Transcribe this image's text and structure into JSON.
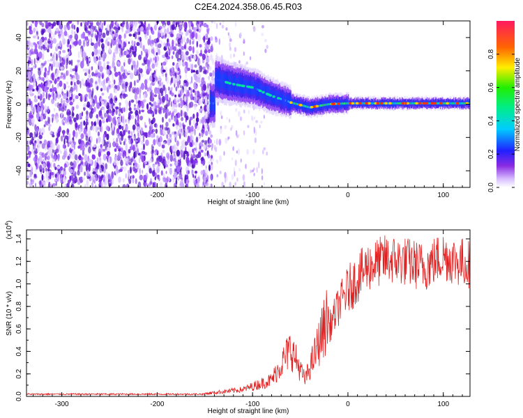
{
  "title": "C2E4.2024.358.06.45.R03",
  "colors": {
    "snr_line": "#e02020",
    "background": "#ffffff"
  },
  "chart_data": [
    {
      "type": "heatmap",
      "name": "spectrogram",
      "xlabel": "Height of straight line (km)",
      "ylabel": "Frequency (Hz)",
      "xlim": [
        -337,
        128
      ],
      "ylim": [
        -50,
        50
      ],
      "xticks": [
        -300,
        -200,
        -100,
        0,
        100
      ],
      "yticks": [
        -40,
        -20,
        0,
        20,
        40
      ],
      "colorbar": {
        "label": "Normalized spectral amplitude",
        "range": [
          0,
          1
        ],
        "ticks": [
          "0.0",
          "0.2",
          "0.4",
          "0.6",
          "0.8"
        ]
      },
      "features": {
        "noise_region_x": [
          -337,
          -150
        ],
        "signal_track": [
          {
            "x": -140,
            "y": 15
          },
          {
            "x": -120,
            "y": 12
          },
          {
            "x": -100,
            "y": 10
          },
          {
            "x": -80,
            "y": 5
          },
          {
            "x": -60,
            "y": 1
          },
          {
            "x": -40,
            "y": -2
          },
          {
            "x": -20,
            "y": 0
          },
          {
            "x": 0,
            "y": 0.5
          },
          {
            "x": 50,
            "y": 0.5
          },
          {
            "x": 128,
            "y": 0.5
          }
        ]
      }
    },
    {
      "type": "line",
      "name": "snr",
      "xlabel": "Height of straight line (km)",
      "ylabel": "SNR (10 * v/v)",
      "yscale_label": "(x10",
      "yscale_exp": "4",
      "xlim": [
        -337,
        128
      ],
      "ylim": [
        0,
        1.48
      ],
      "xticks": [
        -300,
        -200,
        -100,
        0,
        100
      ],
      "yticks": [
        "0.0",
        "0.2",
        "0.4",
        "0.6",
        "0.8",
        "1.0",
        "1.2",
        "1.4"
      ],
      "envelope": [
        {
          "x": -337,
          "y": 0.02
        },
        {
          "x": -150,
          "y": 0.02
        },
        {
          "x": -110,
          "y": 0.05
        },
        {
          "x": -80,
          "y": 0.12
        },
        {
          "x": -60,
          "y": 0.35
        },
        {
          "x": -45,
          "y": 0.12
        },
        {
          "x": -35,
          "y": 0.3
        },
        {
          "x": -25,
          "y": 0.5
        },
        {
          "x": -10,
          "y": 0.8
        },
        {
          "x": 0,
          "y": 0.95
        },
        {
          "x": 20,
          "y": 1.15
        },
        {
          "x": 40,
          "y": 1.22
        },
        {
          "x": 60,
          "y": 1.2
        },
        {
          "x": 80,
          "y": 1.15
        },
        {
          "x": 100,
          "y": 1.25
        },
        {
          "x": 115,
          "y": 1.2
        },
        {
          "x": 128,
          "y": 1.18
        }
      ]
    }
  ]
}
